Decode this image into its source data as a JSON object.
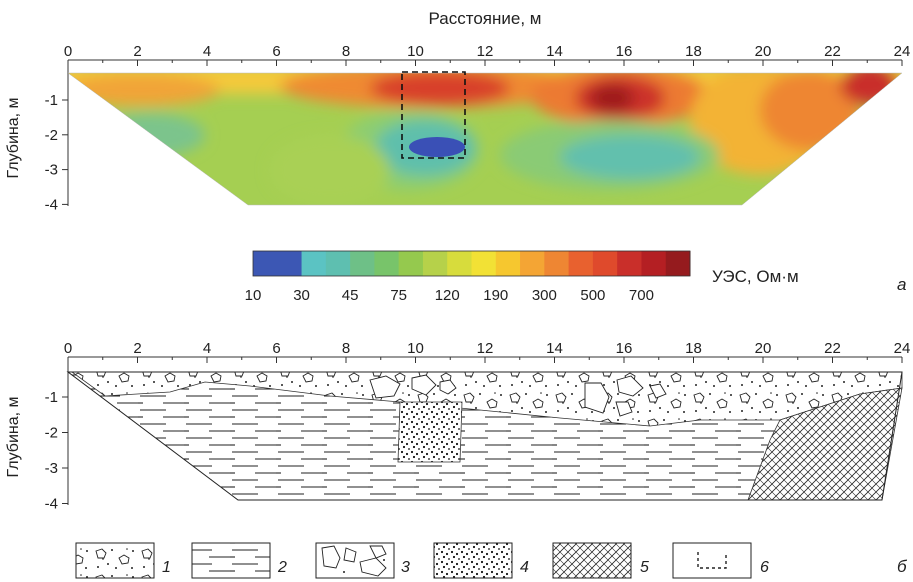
{
  "top_panel": {
    "x_axis_title": "Расстояние, м",
    "y_axis_title": "Глубина, м",
    "x_ticks": [
      "0",
      "2",
      "4",
      "6",
      "8",
      "10",
      "12",
      "14",
      "16",
      "18",
      "20",
      "22",
      "24"
    ],
    "y_ticks": [
      "-1",
      "-2",
      "-3",
      "-4"
    ],
    "panel_letter": "а",
    "colorbar": {
      "title": "УЭС, Ом·м",
      "tick_labels": [
        "10",
        "30",
        "45",
        "75",
        "120",
        "190",
        "300",
        "500",
        "700"
      ],
      "colors": [
        "#3c57b4",
        "#3c57b4",
        "#5bc3c3",
        "#5ebfb0",
        "#6ec087",
        "#78c46a",
        "#95c94e",
        "#b6d14a",
        "#d7dc3c",
        "#f2e135",
        "#f6c72f",
        "#f4a534",
        "#ee8633",
        "#e8612f",
        "#df4a2c",
        "#c92f2a",
        "#b41f23",
        "#951b1e"
      ]
    },
    "colors": {
      "deep_red": "#9f1c1c",
      "red": "#d8412c",
      "orange": "#ef8a33",
      "yellow": "#f2d53a",
      "lime": "#c9d83f",
      "green": "#9ccc55",
      "teal": "#5fbfac",
      "blue": "#3a50b6"
    }
  },
  "bottom_panel": {
    "y_axis_title": "Глубина, м",
    "x_ticks": [
      "0",
      "2",
      "4",
      "6",
      "8",
      "10",
      "12",
      "14",
      "16",
      "18",
      "20",
      "22",
      "24"
    ],
    "y_ticks": [
      "-1",
      "-2",
      "-3",
      "-4"
    ],
    "panel_letter": "б"
  },
  "legend": {
    "items": [
      {
        "number": "1",
        "pattern": "gravel-sand"
      },
      {
        "number": "2",
        "pattern": "clay-dashes"
      },
      {
        "number": "3",
        "pattern": "boulders"
      },
      {
        "number": "4",
        "pattern": "dense-dots"
      },
      {
        "number": "5",
        "pattern": "crosshatch"
      },
      {
        "number": "6",
        "pattern": "dashed-outline"
      }
    ]
  }
}
